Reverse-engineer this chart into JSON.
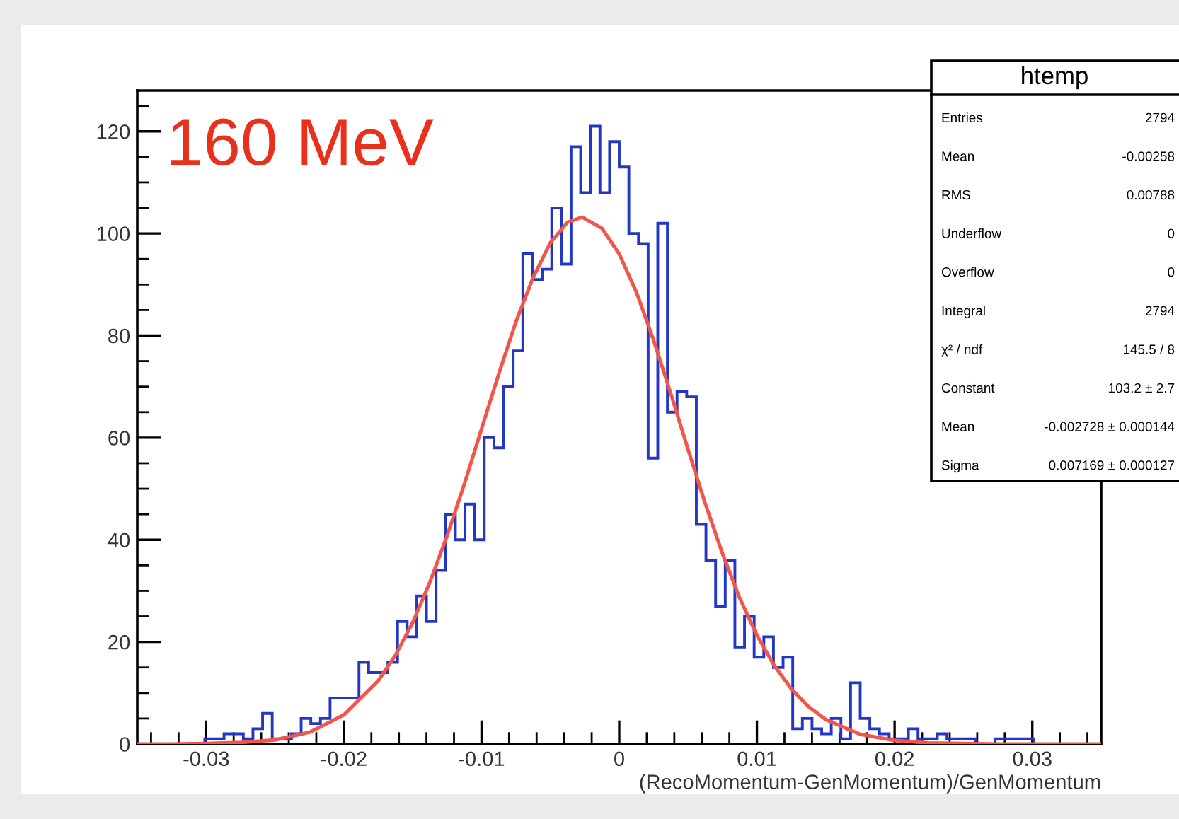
{
  "chart_data": {
    "type": "histogram",
    "xlabel": "(RecoMomentum-GenMomentum)/GenMomentum",
    "xlim": [
      -0.035,
      0.035
    ],
    "xticks": [
      -0.03,
      -0.02,
      -0.01,
      0,
      0.01,
      0.02,
      0.03
    ],
    "ylim": [
      0,
      128
    ],
    "yticks": [
      0,
      20,
      40,
      60,
      80,
      100,
      120
    ],
    "grid": false,
    "series": [
      {
        "color": "#2238c4",
        "bins": [
          -0.035,
          -0.0343,
          -0.0336,
          -0.0329,
          -0.0322,
          -0.0315,
          -0.0308,
          -0.0301,
          -0.0294,
          -0.0287,
          -0.028,
          -0.0273,
          -0.0266,
          -0.0259,
          -0.0252,
          -0.0245,
          -0.0238,
          -0.0231,
          -0.0224,
          -0.0217,
          -0.021,
          -0.0203,
          -0.0196,
          -0.0189,
          -0.0182,
          -0.0175,
          -0.0168,
          -0.0161,
          -0.0154,
          -0.0147,
          -0.014,
          -0.0133,
          -0.0126,
          -0.0119,
          -0.0112,
          -0.0105,
          -0.0098,
          -0.0091,
          -0.0084,
          -0.0077,
          -0.007,
          -0.0063,
          -0.0056,
          -0.0049,
          -0.0042,
          -0.0035,
          -0.0028,
          -0.0021,
          -0.0014,
          -0.0007,
          0,
          0.0007,
          0.0014,
          0.0021,
          0.0028,
          0.0035,
          0.0042,
          0.0049,
          0.0056,
          0.0063,
          0.007,
          0.0077,
          0.0084,
          0.0091,
          0.0098,
          0.0105,
          0.0112,
          0.0119,
          0.0126,
          0.0133,
          0.014,
          0.0147,
          0.0154,
          0.0161,
          0.0168,
          0.0175,
          0.0182,
          0.0189,
          0.0196,
          0.0203,
          0.021,
          0.0217,
          0.0224,
          0.0231,
          0.0238,
          0.0245,
          0.0252,
          0.0259,
          0.0266,
          0.0273,
          0.028,
          0.0287,
          0.0294,
          0.0301,
          0.0308,
          0.0315,
          0.0322,
          0.0329,
          0.0336,
          0.0343,
          0.035
        ],
        "values": [
          0,
          0,
          0,
          0,
          0,
          0,
          0,
          1,
          1,
          2,
          2,
          1,
          3,
          6,
          1,
          1,
          2,
          5,
          4,
          5,
          9,
          9,
          9,
          16,
          14,
          14,
          16,
          24,
          21,
          29,
          24,
          34,
          45,
          40,
          47,
          40,
          60,
          58,
          70,
          77,
          96,
          91,
          93,
          105,
          94,
          117,
          108,
          121,
          108,
          118,
          113,
          100,
          98,
          56,
          102,
          65,
          69,
          68,
          43,
          36,
          27,
          36,
          19,
          25,
          17,
          21,
          15,
          17,
          3,
          5,
          3,
          2,
          5,
          1,
          12,
          5,
          3,
          2,
          1,
          1,
          3,
          1,
          1,
          2,
          1,
          1,
          1,
          0,
          0,
          1,
          1,
          1,
          1,
          0,
          0,
          0,
          0,
          0,
          0,
          0
        ]
      },
      {
        "type": "line",
        "color": "#f2564a",
        "x": [
          -0.035,
          -0.0325,
          -0.03,
          -0.0275,
          -0.025,
          -0.0225,
          -0.02,
          -0.0175,
          -0.01625,
          -0.015,
          -0.01375,
          -0.0125,
          -0.01125,
          -0.01,
          -0.00875,
          -0.0075,
          -0.00625,
          -0.005,
          -0.00375,
          -0.0027,
          -0.00125,
          0,
          0.00125,
          0.0025,
          0.00375,
          0.005,
          0.00625,
          0.0075,
          0.00875,
          0.01,
          0.01125,
          0.0125,
          0.01375,
          0.015,
          0.0175,
          0.02,
          0.0225,
          0.025,
          0.0275,
          0.03,
          0.0325,
          0.035
        ],
        "values": [
          0,
          0,
          0.1,
          0.3,
          0.8,
          2.3,
          5.7,
          12.4,
          17.4,
          23.8,
          31.7,
          40.8,
          50.9,
          61.7,
          72.5,
          82.7,
          91.4,
          98.2,
          102.2,
          103.2,
          101,
          96,
          88.5,
          79.1,
          68.6,
          57.7,
          47.1,
          37.3,
          28.6,
          21.3,
          15.4,
          10.8,
          7.3,
          4.8,
          1.9,
          0.7,
          0.2,
          0.1,
          0,
          0,
          0,
          0
        ]
      }
    ],
    "annotations": [
      "160 MeV",
      "htemp",
      "Entries",
      "2794",
      "Mean",
      "-0.00258",
      "RMS",
      "0.00788",
      "Underflow",
      "0",
      "Overflow",
      "0",
      "Integral",
      "2794",
      "χ² / ndf",
      "145.5 / 8",
      "Constant",
      "103.2 ± 2.7",
      "Mean",
      "-0.002728 ± 0.000144",
      "Sigma",
      "0.007169 ± 0.000127"
    ]
  }
}
